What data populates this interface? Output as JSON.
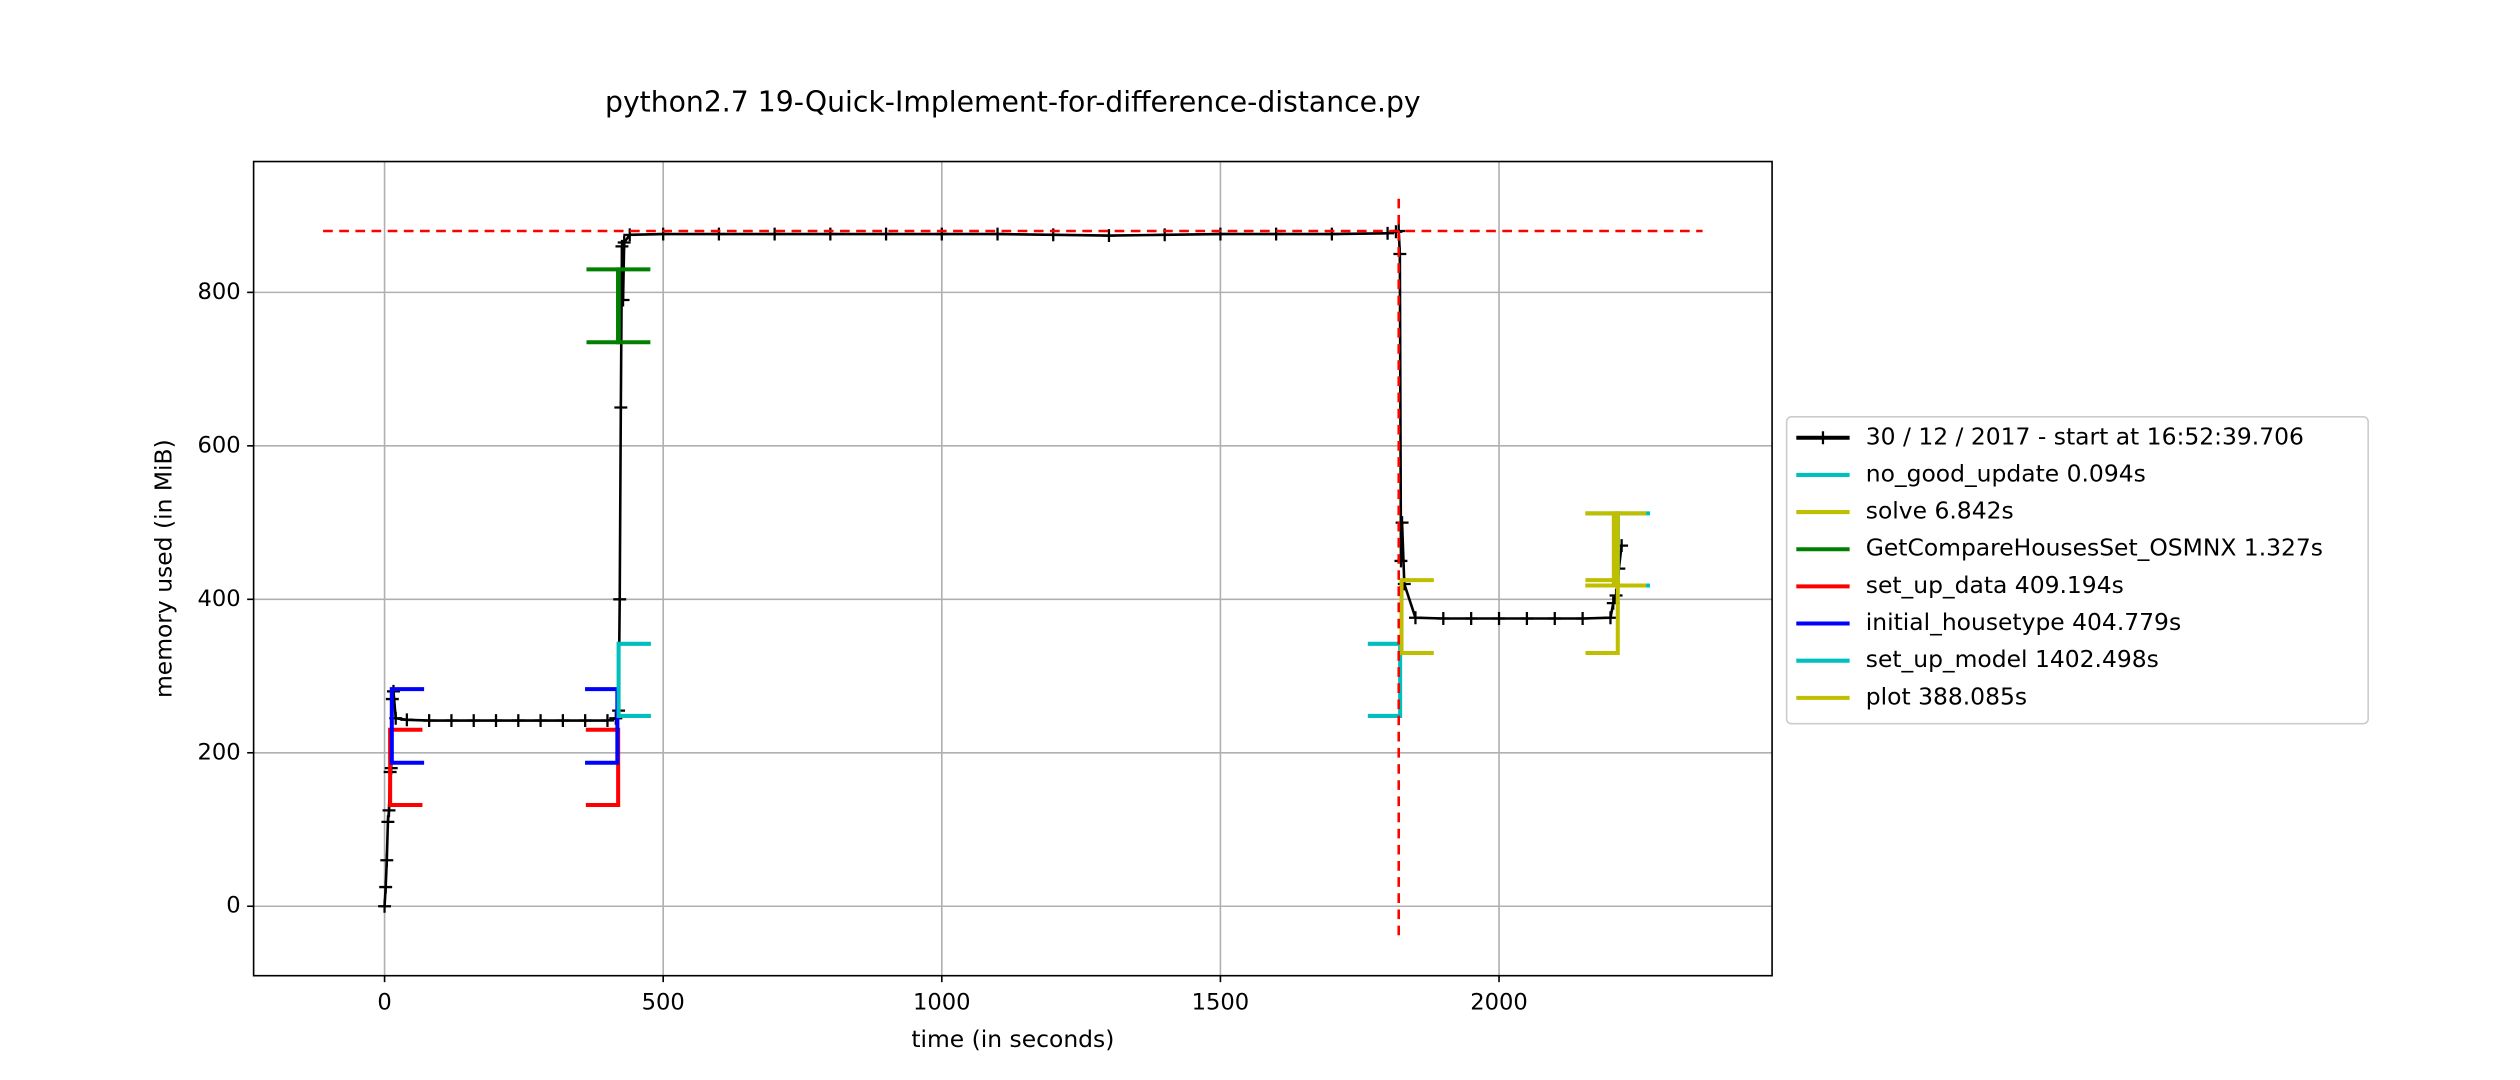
{
  "chart_data": {
    "type": "line",
    "title": "python2.7 19-Quick-Implement-for-difference-distance.py",
    "xlabel": "time (in seconds)",
    "ylabel": "memory used (in MiB)",
    "x": [
      0,
      2,
      4,
      6,
      8,
      10,
      12,
      14,
      16,
      20,
      40,
      80,
      120,
      160,
      200,
      240,
      280,
      320,
      360,
      400,
      415,
      420,
      422,
      424,
      426,
      428,
      430,
      440,
      500,
      600,
      700,
      800,
      900,
      1000,
      1100,
      1200,
      1300,
      1400,
      1500,
      1600,
      1700,
      1800,
      1815,
      1820,
      1822,
      1824,
      1826,
      1830,
      1850,
      1900,
      1950,
      2000,
      2050,
      2100,
      2150,
      2200,
      2205,
      2210,
      2215,
      2220
    ],
    "series": [
      {
        "name": "30 / 12 / 2017 - start at 16:52:39.706",
        "color": "#000000",
        "values": [
          0,
          25,
          60,
          110,
          125,
          175,
          180,
          270,
          280,
          245,
          243,
          242,
          242,
          242,
          242,
          242,
          242,
          242,
          242,
          242,
          245,
          255,
          400,
          650,
          860,
          790,
          865,
          875,
          876,
          876,
          876,
          876,
          876,
          876,
          876,
          875,
          874,
          875,
          876,
          876,
          876,
          877,
          879,
          880,
          850,
          450,
          500,
          420,
          376,
          375,
          375,
          375,
          375,
          375,
          375,
          376,
          395,
          405,
          440,
          470
        ]
      }
    ],
    "functions": [
      {
        "name": "no_good_update 0.094s",
        "color": "#00bfbf",
        "start": 2213,
        "end": 2213.094,
        "low": 418,
        "high": 512
      },
      {
        "name": "solve 6.842s",
        "color": "#bfbf00",
        "start": 2206,
        "end": 2212.842,
        "low": 418,
        "high": 512
      },
      {
        "name": "GetCompareHousesSet_OSMNX 1.327s",
        "color": "#008000",
        "start": 419,
        "end": 420.327,
        "low": 735,
        "high": 830
      },
      {
        "name": "set_up_data 409.194s",
        "color": "#ff0000",
        "start": 10,
        "end": 419.194,
        "low": 132,
        "high": 230
      },
      {
        "name": "initial_housetype 404.779s",
        "color": "#0000ff",
        "start": 13,
        "end": 417.779,
        "low": 187,
        "high": 283
      },
      {
        "name": "set_up_model 1402.498s",
        "color": "#00bfbf",
        "start": 420,
        "end": 1822.498,
        "low": 248,
        "high": 342
      },
      {
        "name": "plot 388.085s",
        "color": "#bfbf00",
        "start": 1825,
        "end": 2213.085,
        "low": 330,
        "high": 425
      }
    ],
    "peak": {
      "time": 1820,
      "memory": 880,
      "color": "#ff0000"
    },
    "xlim": [
      -235,
      2490
    ],
    "ylim": [
      -90.5,
      970.5
    ],
    "xticks": [
      0,
      500,
      1000,
      1500,
      2000
    ],
    "yticks": [
      0,
      200,
      400,
      600,
      800
    ],
    "grid": true,
    "legend": "right"
  }
}
